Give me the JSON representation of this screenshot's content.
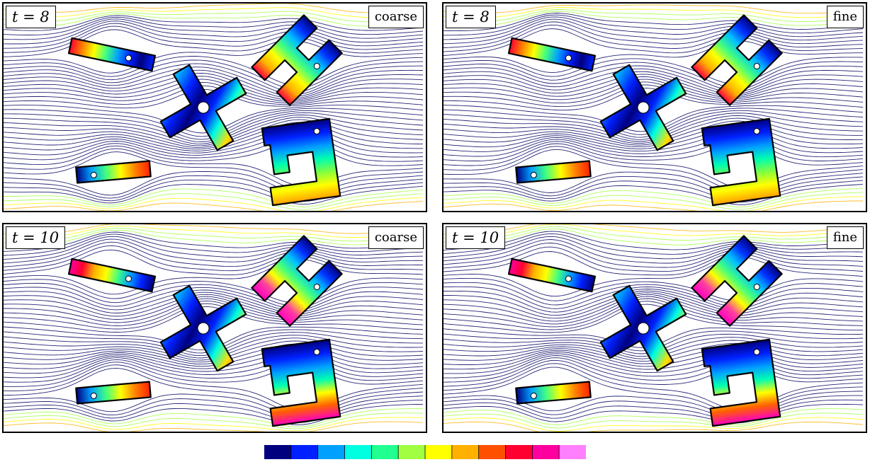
{
  "panels": [
    {
      "id": "p1",
      "time_label": "t = 8",
      "resolution_label": "coarse"
    },
    {
      "id": "p2",
      "time_label": "t = 8",
      "resolution_label": "fine"
    },
    {
      "id": "p3",
      "time_label": "t = 10",
      "resolution_label": "coarse"
    },
    {
      "id": "p4",
      "time_label": "t = 10",
      "resolution_label": "fine"
    }
  ],
  "colors": {
    "colormap": [
      "#00007f",
      "#0020ff",
      "#00a0ff",
      "#00ffe0",
      "#20ff90",
      "#a0ff40",
      "#ffff00",
      "#ffb000",
      "#ff5000",
      "#ff0030",
      "#ff00a0",
      "#ff80ff"
    ],
    "streamline_slow": "#000060",
    "streamline_fast": "#ffe000",
    "body_outline": "#000000",
    "hole_fill": "#ffffff"
  },
  "bodies": [
    "slender-bar",
    "cross",
    "h-shape",
    "hooked-frame",
    "small-bar"
  ]
}
